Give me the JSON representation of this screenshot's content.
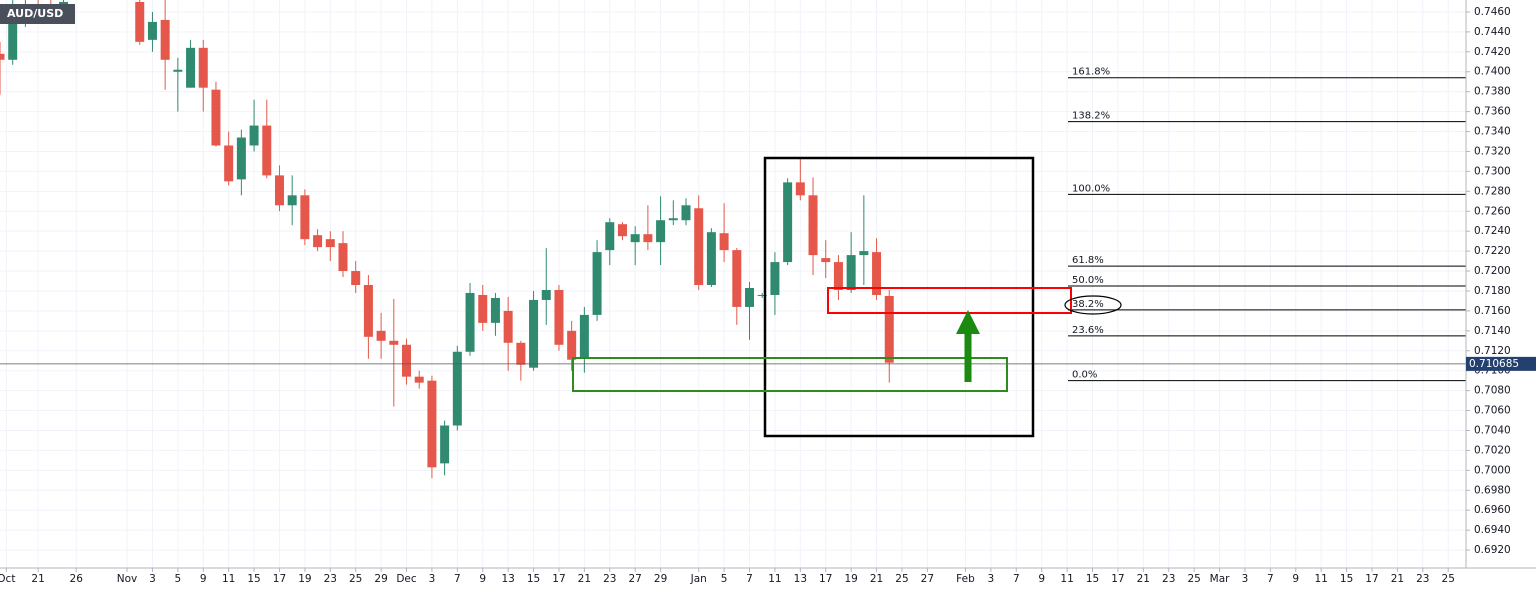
{
  "chart_data": {
    "type": "candlestick",
    "title": "AUD/USD",
    "x": [
      0,
      1,
      2,
      3,
      4,
      5,
      11,
      12,
      13,
      14,
      15,
      16,
      17,
      18,
      19,
      20,
      21,
      22,
      23,
      24,
      25,
      26,
      27,
      28,
      29,
      30,
      31,
      32,
      33,
      34,
      35,
      36,
      37,
      38,
      39,
      40,
      41,
      42,
      43,
      44,
      45,
      46,
      47,
      48,
      49,
      50,
      51,
      52,
      53,
      54,
      55,
      56,
      57,
      58,
      59,
      60,
      61,
      62,
      63,
      64,
      65,
      66,
      67,
      68,
      69,
      70
    ],
    "open": [
      0.7418,
      0.7412,
      0.7455,
      0.7468,
      0.7466,
      0.7458,
      0.747,
      0.7432,
      0.7452,
      0.74,
      0.7384,
      0.7424,
      0.7382,
      0.7326,
      0.7292,
      0.7326,
      0.7346,
      0.7296,
      0.7266,
      0.7276,
      0.7236,
      0.7232,
      0.7228,
      0.72,
      0.7186,
      0.714,
      0.713,
      0.7126,
      0.7094,
      0.709,
      0.7007,
      0.7045,
      0.7119,
      0.7176,
      0.7148,
      0.716,
      0.7128,
      0.7103,
      0.7171,
      0.7181,
      0.714,
      0.7112,
      0.7156,
      0.7221,
      0.7247,
      0.7229,
      0.7237,
      0.7229,
      0.7251,
      0.7251,
      0.7263,
      0.7186,
      0.7238,
      0.7221,
      0.7164,
      0.7175,
      0.7176,
      0.7209,
      0.7289,
      0.7276,
      0.7213,
      0.7209,
      0.7181,
      0.7216,
      0.7219,
      0.7175
    ],
    "high": [
      0.743,
      0.7472,
      0.7472,
      0.7472,
      0.7472,
      0.7472,
      0.748,
      0.746,
      0.7472,
      0.7414,
      0.7432,
      0.7432,
      0.739,
      0.734,
      0.7342,
      0.7372,
      0.7372,
      0.7306,
      0.7296,
      0.7282,
      0.7242,
      0.724,
      0.724,
      0.721,
      0.7196,
      0.7158,
      0.7172,
      0.7132,
      0.71,
      0.7095,
      0.705,
      0.7125,
      0.7188,
      0.7186,
      0.7178,
      0.7174,
      0.713,
      0.718,
      0.7223,
      0.7186,
      0.715,
      0.7164,
      0.7231,
      0.7253,
      0.7249,
      0.7245,
      0.7266,
      0.7275,
      0.7271,
      0.7273,
      0.7276,
      0.7243,
      0.7268,
      0.7223,
      0.7189,
      0.7178,
      0.7219,
      0.7293,
      0.7313,
      0.7294,
      0.7231,
      0.7216,
      0.7239,
      0.7276,
      0.7233,
      0.7181
    ],
    "low": [
      0.7377,
      0.7407,
      0.7445,
      0.7452,
      0.7455,
      0.7452,
      0.7427,
      0.742,
      0.7382,
      0.736,
      0.7384,
      0.736,
      0.7325,
      0.7286,
      0.7276,
      0.732,
      0.7293,
      0.726,
      0.7246,
      0.7226,
      0.722,
      0.721,
      0.7194,
      0.7178,
      0.7112,
      0.7112,
      0.7064,
      0.7086,
      0.7082,
      0.6992,
      0.6995,
      0.704,
      0.7115,
      0.714,
      0.7135,
      0.71,
      0.709,
      0.71,
      0.7146,
      0.712,
      0.71,
      0.7098,
      0.715,
      0.7206,
      0.7231,
      0.7206,
      0.7221,
      0.7206,
      0.7246,
      0.7246,
      0.7181,
      0.7184,
      0.7209,
      0.7146,
      0.7131,
      0.7173,
      0.7156,
      0.7206,
      0.7271,
      0.7196,
      0.7193,
      0.7171,
      0.7178,
      0.7186,
      0.7171,
      0.7088
    ],
    "close": [
      0.7412,
      0.7468,
      0.7466,
      0.7458,
      0.746,
      0.747,
      0.743,
      0.745,
      0.7412,
      0.7402,
      0.7424,
      0.7384,
      0.7326,
      0.729,
      0.7334,
      0.7346,
      0.7296,
      0.7266,
      0.7276,
      0.7232,
      0.7224,
      0.7224,
      0.72,
      0.7186,
      0.7134,
      0.713,
      0.7126,
      0.7094,
      0.7088,
      0.7003,
      0.7045,
      0.7119,
      0.7178,
      0.7148,
      0.7173,
      0.7128,
      0.7106,
      0.7171,
      0.7181,
      0.7126,
      0.7111,
      0.7156,
      0.7219,
      0.7249,
      0.7235,
      0.7237,
      0.7229,
      0.7251,
      0.7253,
      0.7266,
      0.7186,
      0.7239,
      0.7221,
      0.7164,
      0.7183,
      0.7176,
      0.7209,
      0.7289,
      0.7276,
      0.7216,
      0.7209,
      0.7181,
      0.7216,
      0.722,
      0.7176,
      0.7108
    ],
    "up_color": "#2f8a70",
    "down_color": "#e5574a",
    "xlim": [
      0,
      115.4
    ],
    "ylim": [
      0.6902,
      0.7472
    ],
    "xticks": [
      {
        "value": 0.5,
        "label": "Oct"
      },
      {
        "value": 3,
        "label": "21"
      },
      {
        "value": 6,
        "label": "26"
      },
      {
        "value": 10,
        "label": "Nov"
      },
      {
        "value": 12,
        "label": "3"
      },
      {
        "value": 14,
        "label": "5"
      },
      {
        "value": 16,
        "label": "9"
      },
      {
        "value": 18,
        "label": "11"
      },
      {
        "value": 20,
        "label": "15"
      },
      {
        "value": 22,
        "label": "17"
      },
      {
        "value": 24,
        "label": "19"
      },
      {
        "value": 26,
        "label": "23"
      },
      {
        "value": 28,
        "label": "25"
      },
      {
        "value": 30,
        "label": "29"
      },
      {
        "value": 32,
        "label": "Dec"
      },
      {
        "value": 34,
        "label": "3"
      },
      {
        "value": 36,
        "label": "7"
      },
      {
        "value": 38,
        "label": "9"
      },
      {
        "value": 40,
        "label": "13"
      },
      {
        "value": 42,
        "label": "15"
      },
      {
        "value": 44,
        "label": "17"
      },
      {
        "value": 46,
        "label": "21"
      },
      {
        "value": 48,
        "label": "23"
      },
      {
        "value": 50,
        "label": "27"
      },
      {
        "value": 52,
        "label": "29"
      },
      {
        "value": 55,
        "label": "Jan"
      },
      {
        "value": 57,
        "label": "5"
      },
      {
        "value": 59,
        "label": "7"
      },
      {
        "value": 61,
        "label": "11"
      },
      {
        "value": 63,
        "label": "13"
      },
      {
        "value": 65,
        "label": "17"
      },
      {
        "value": 67,
        "label": "19"
      },
      {
        "value": 69,
        "label": "21"
      },
      {
        "value": 71,
        "label": "25"
      },
      {
        "value": 73,
        "label": "27"
      },
      {
        "value": 76,
        "label": "Feb"
      },
      {
        "value": 78,
        "label": "3"
      },
      {
        "value": 80,
        "label": "7"
      },
      {
        "value": 82,
        "label": "9"
      },
      {
        "value": 84,
        "label": "11"
      },
      {
        "value": 86,
        "label": "15"
      },
      {
        "value": 88,
        "label": "17"
      },
      {
        "value": 90,
        "label": "21"
      },
      {
        "value": 92,
        "label": "23"
      },
      {
        "value": 94,
        "label": "25"
      },
      {
        "value": 96,
        "label": "Mar"
      },
      {
        "value": 98,
        "label": "3"
      },
      {
        "value": 100,
        "label": "7"
      },
      {
        "value": 102,
        "label": "9"
      },
      {
        "value": 104,
        "label": "11"
      },
      {
        "value": 106,
        "label": "15"
      },
      {
        "value": 108,
        "label": "17"
      },
      {
        "value": 110,
        "label": "21"
      },
      {
        "value": 112,
        "label": "23"
      },
      {
        "value": 114,
        "label": "25"
      }
    ],
    "yticks": [
      {
        "value": 0.692,
        "label": "0.6920"
      },
      {
        "value": 0.694,
        "label": "0.6940"
      },
      {
        "value": 0.696,
        "label": "0.6960"
      },
      {
        "value": 0.698,
        "label": "0.6980"
      },
      {
        "value": 0.7,
        "label": "0.7000"
      },
      {
        "value": 0.702,
        "label": "0.7020"
      },
      {
        "value": 0.704,
        "label": "0.7040"
      },
      {
        "value": 0.706,
        "label": "0.7060"
      },
      {
        "value": 0.708,
        "label": "0.7080"
      },
      {
        "value": 0.71,
        "label": "0.7100"
      },
      {
        "value": 0.712,
        "label": "0.7120"
      },
      {
        "value": 0.714,
        "label": "0.7140"
      },
      {
        "value": 0.716,
        "label": "0.7160"
      },
      {
        "value": 0.718,
        "label": "0.7180"
      },
      {
        "value": 0.72,
        "label": "0.7200"
      },
      {
        "value": 0.722,
        "label": "0.7220"
      },
      {
        "value": 0.724,
        "label": "0.7240"
      },
      {
        "value": 0.726,
        "label": "0.7260"
      },
      {
        "value": 0.728,
        "label": "0.7280"
      },
      {
        "value": 0.73,
        "label": "0.7300"
      },
      {
        "value": 0.732,
        "label": "0.7320"
      },
      {
        "value": 0.734,
        "label": "0.7340"
      },
      {
        "value": 0.736,
        "label": "0.7360"
      },
      {
        "value": 0.738,
        "label": "0.7380"
      },
      {
        "value": 0.74,
        "label": "0.7400"
      },
      {
        "value": 0.742,
        "label": "0.7420"
      },
      {
        "value": 0.744,
        "label": "0.7440"
      },
      {
        "value": 0.746,
        "label": "0.7460"
      }
    ],
    "grid": true,
    "last_price": 0.710685,
    "fib_labels": [
      "161.8%",
      "138.2%",
      "100.0%",
      "61.8%",
      "50.0%",
      "38.2%",
      "23.6%",
      "0.0%"
    ],
    "fib_prices": [
      0.7394,
      0.735,
      0.7277,
      0.7205,
      0.7185,
      0.7161,
      0.7135,
      0.709
    ]
  }
}
